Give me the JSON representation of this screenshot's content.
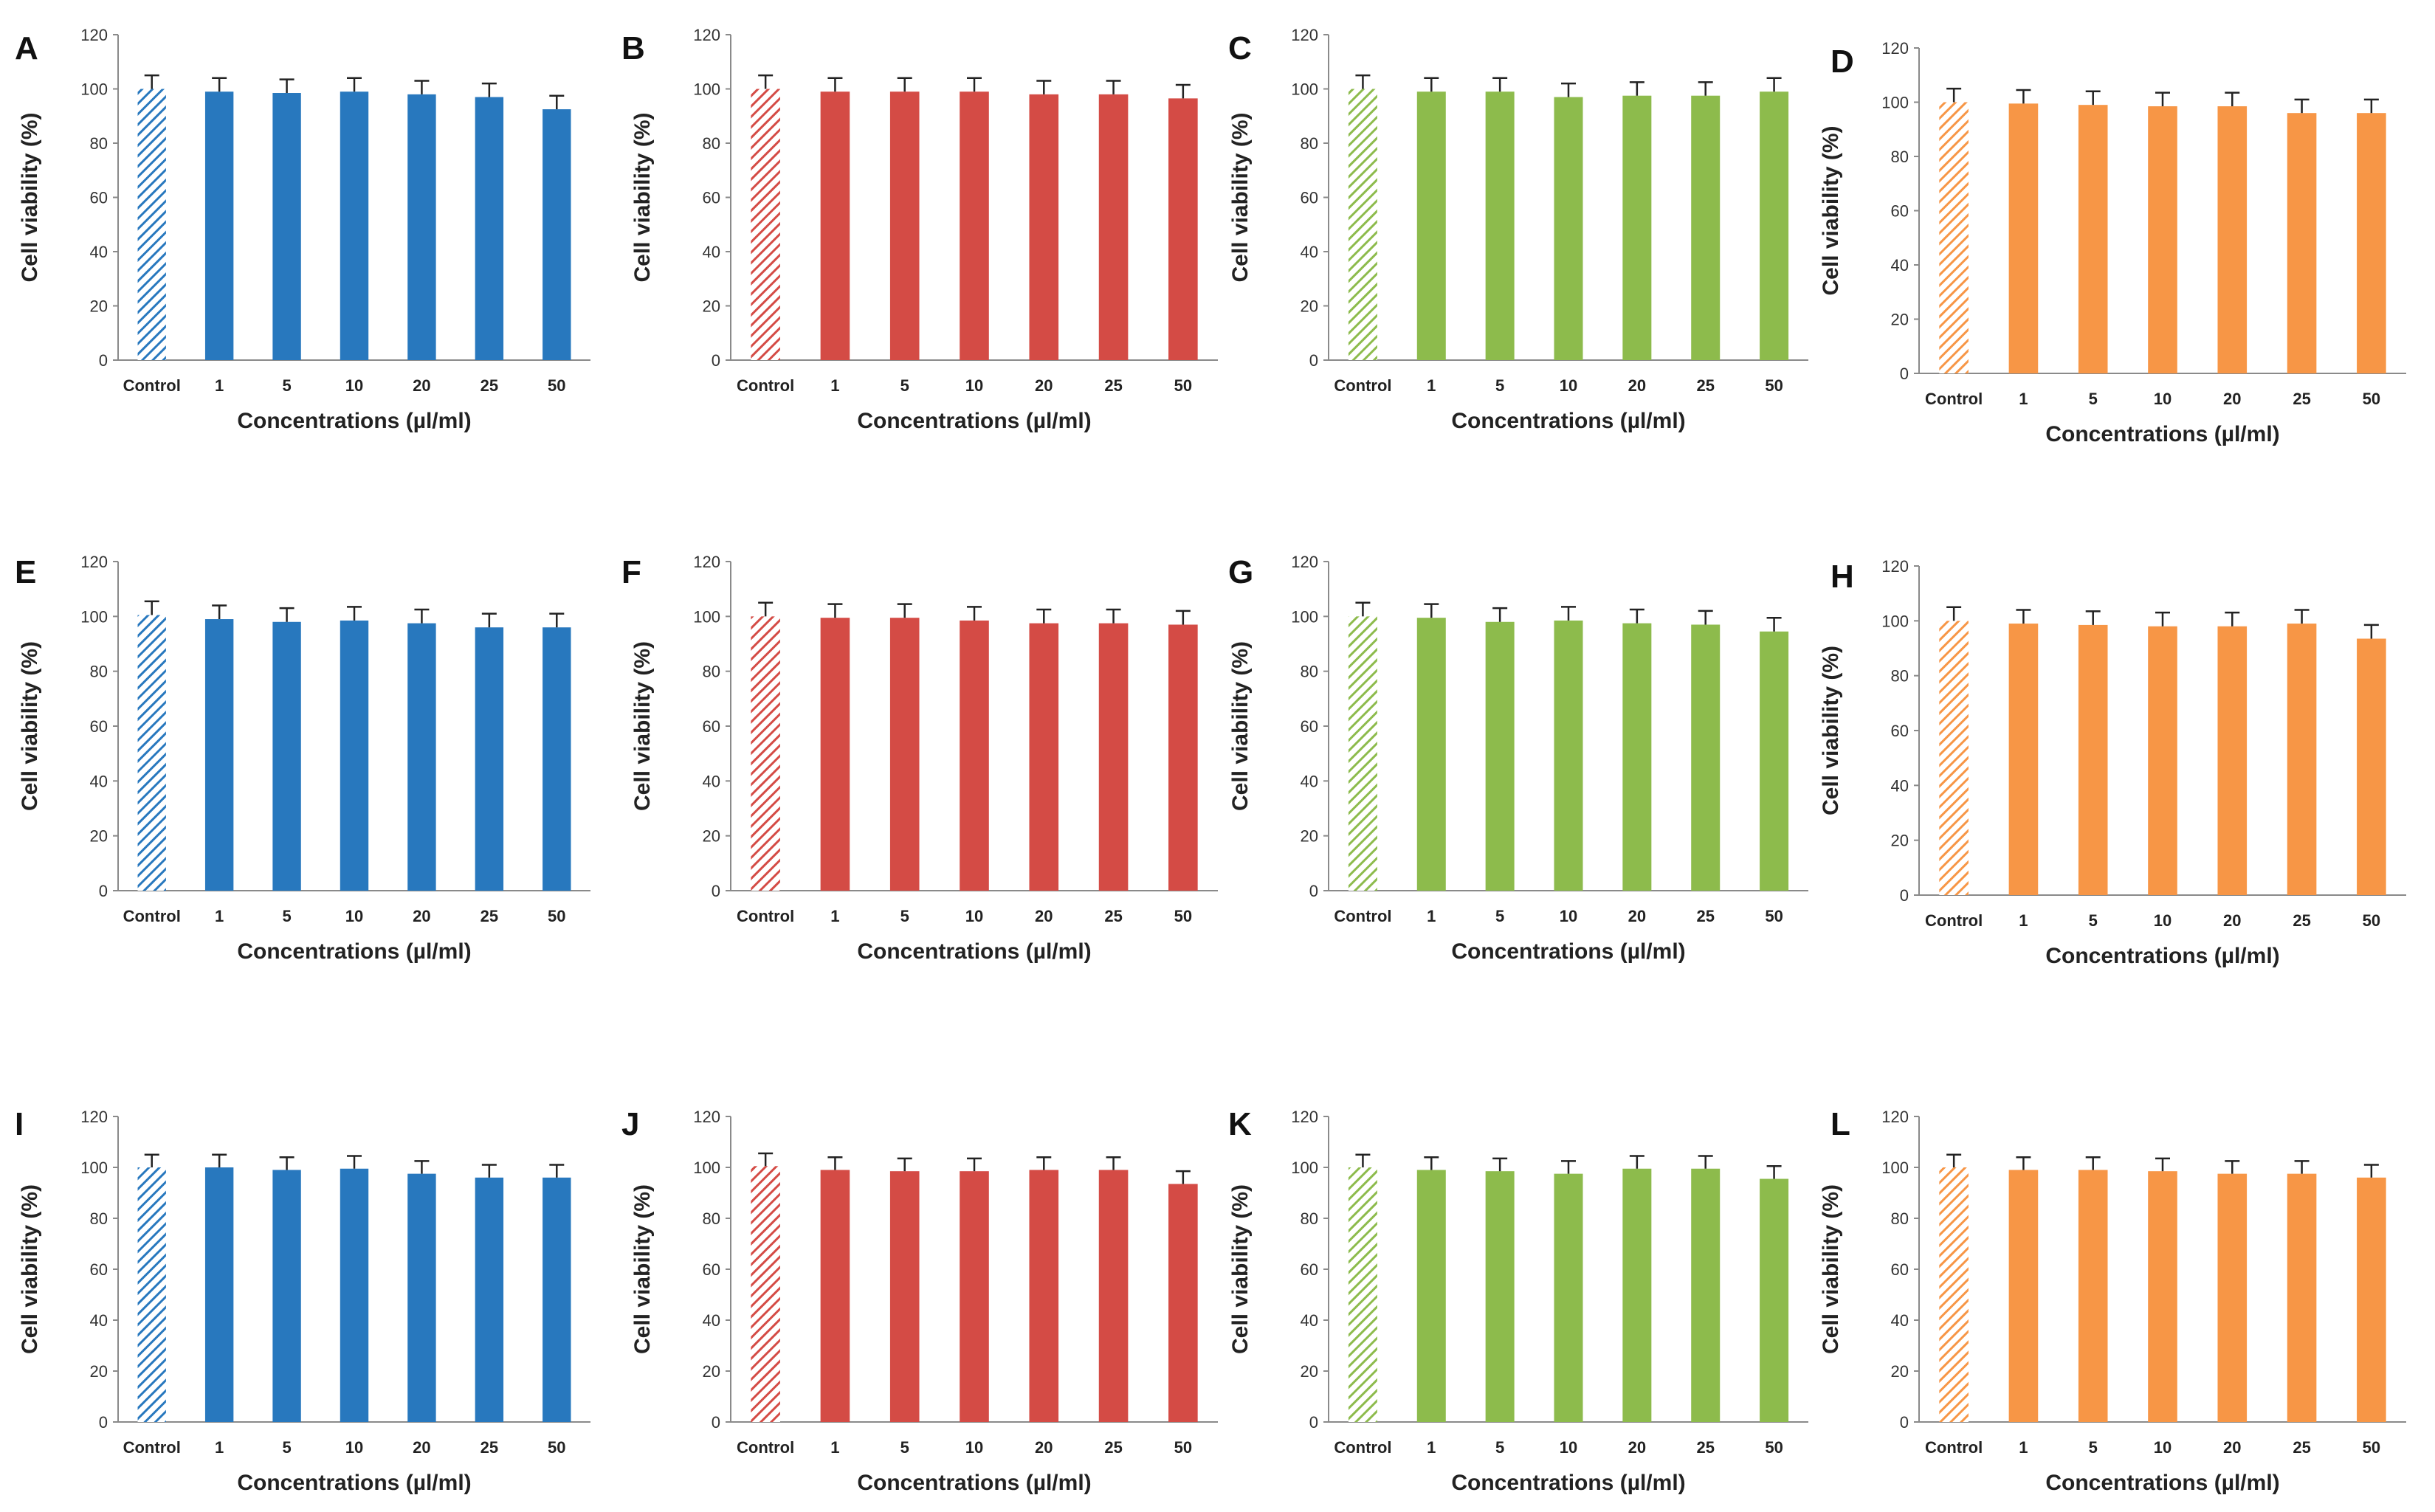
{
  "chart_data": [
    {
      "panel": "A",
      "type": "bar",
      "color": "#2878BE",
      "categories": [
        "Control",
        "1",
        "5",
        "10",
        "20",
        "25",
        "50"
      ],
      "values": [
        100,
        99,
        98.5,
        99,
        98,
        97,
        92.5
      ],
      "errors": [
        5,
        5,
        5,
        5,
        5,
        5,
        5
      ],
      "xlabel": "Concentrations (µl/ml)",
      "ylabel": "Cell viability (%)",
      "yticks": [
        "0",
        "20",
        "40",
        "60",
        "80",
        "100",
        "120"
      ],
      "ylim": [
        0,
        120
      ]
    },
    {
      "panel": "B",
      "type": "bar",
      "color": "#D44B45",
      "categories": [
        "Control",
        "1",
        "5",
        "10",
        "20",
        "25",
        "50"
      ],
      "values": [
        100,
        99,
        99,
        99,
        98,
        98,
        96.5
      ],
      "errors": [
        5,
        5,
        5,
        5,
        5,
        5,
        5
      ],
      "xlabel": "Concentrations (µl/ml)",
      "ylabel": "Cell viability (%)",
      "yticks": [
        "0",
        "20",
        "40",
        "60",
        "80",
        "100",
        "120"
      ],
      "ylim": [
        0,
        120
      ]
    },
    {
      "panel": "C",
      "type": "bar",
      "color": "#8DBB4C",
      "categories": [
        "Control",
        "1",
        "5",
        "10",
        "20",
        "25",
        "50"
      ],
      "values": [
        100,
        99,
        99,
        97,
        97.5,
        97.5,
        99
      ],
      "errors": [
        5,
        5,
        5,
        5,
        5,
        5,
        5
      ],
      "xlabel": "Concentrations (µl/ml)",
      "ylabel": "Cell viability (%)",
      "yticks": [
        "0",
        "20",
        "40",
        "60",
        "80",
        "100",
        "120"
      ],
      "ylim": [
        0,
        120
      ]
    },
    {
      "panel": "D",
      "type": "bar",
      "color": "#F79646",
      "categories": [
        "Control",
        "1",
        "5",
        "10",
        "20",
        "25",
        "50"
      ],
      "values": [
        100,
        99.5,
        99,
        98.5,
        98.5,
        96,
        96
      ],
      "errors": [
        5,
        5,
        5,
        5,
        5,
        5,
        5
      ],
      "xlabel": "Concentrations (µl/ml)",
      "ylabel": "Cell viability (%)",
      "yticks": [
        "0",
        "20",
        "40",
        "60",
        "80",
        "100",
        "120"
      ],
      "ylim": [
        0,
        120
      ]
    },
    {
      "panel": "E",
      "type": "bar",
      "color": "#2878BE",
      "categories": [
        "Control",
        "1",
        "5",
        "10",
        "20",
        "25",
        "50"
      ],
      "values": [
        100.5,
        99,
        98,
        98.5,
        97.5,
        96,
        96
      ],
      "errors": [
        5,
        5,
        5,
        5,
        5,
        5,
        5
      ],
      "xlabel": "Concentrations (µl/ml)",
      "ylabel": "Cell viability (%)",
      "yticks": [
        "0",
        "20",
        "40",
        "60",
        "80",
        "100",
        "120"
      ],
      "ylim": [
        0,
        120
      ]
    },
    {
      "panel": "F",
      "type": "bar",
      "color": "#D44B45",
      "categories": [
        "Control",
        "1",
        "5",
        "10",
        "20",
        "25",
        "50"
      ],
      "values": [
        100,
        99.5,
        99.5,
        98.5,
        97.5,
        97.5,
        97
      ],
      "errors": [
        5,
        5,
        5,
        5,
        5,
        5,
        5
      ],
      "xlabel": "Concentrations (µl/ml)",
      "ylabel": "Cell viability (%)",
      "yticks": [
        "0",
        "20",
        "40",
        "60",
        "80",
        "100",
        "120"
      ],
      "ylim": [
        0,
        120
      ]
    },
    {
      "panel": "G",
      "type": "bar",
      "color": "#8DBB4C",
      "categories": [
        "Control",
        "1",
        "5",
        "10",
        "20",
        "25",
        "50"
      ],
      "values": [
        100,
        99.5,
        98,
        98.5,
        97.5,
        97,
        94.5
      ],
      "errors": [
        5,
        5,
        5,
        5,
        5,
        5,
        5
      ],
      "xlabel": "Concentrations (µl/ml)",
      "ylabel": "Cell viability (%)",
      "yticks": [
        "0",
        "20",
        "40",
        "60",
        "80",
        "100",
        "120"
      ],
      "ylim": [
        0,
        120
      ]
    },
    {
      "panel": "H",
      "type": "bar",
      "color": "#F79646",
      "categories": [
        "Control",
        "1",
        "5",
        "10",
        "20",
        "25",
        "50"
      ],
      "values": [
        100,
        99,
        98.5,
        98,
        98,
        99,
        93.5
      ],
      "errors": [
        5,
        5,
        5,
        5,
        5,
        5,
        5
      ],
      "xlabel": "Concentrations (µl/ml)",
      "ylabel": "Cell viability (%)",
      "yticks": [
        "0",
        "20",
        "40",
        "60",
        "80",
        "100",
        "120"
      ],
      "ylim": [
        0,
        120
      ]
    },
    {
      "panel": "I",
      "type": "bar",
      "color": "#2878BE",
      "categories": [
        "Control",
        "1",
        "5",
        "10",
        "20",
        "25",
        "50"
      ],
      "values": [
        100,
        100,
        99,
        99.5,
        97.5,
        96,
        96
      ],
      "errors": [
        5,
        5,
        5,
        5,
        5,
        5,
        5
      ],
      "xlabel": "Concentrations (µl/ml)",
      "ylabel": "Cell viability (%)",
      "yticks": [
        "0",
        "20",
        "40",
        "60",
        "80",
        "100",
        "120"
      ],
      "ylim": [
        0,
        120
      ]
    },
    {
      "panel": "J",
      "type": "bar",
      "color": "#D44B45",
      "categories": [
        "Control",
        "1",
        "5",
        "10",
        "20",
        "25",
        "50"
      ],
      "values": [
        100.5,
        99,
        98.5,
        98.5,
        99,
        99,
        93.5
      ],
      "errors": [
        5,
        5,
        5,
        5,
        5,
        5,
        5
      ],
      "xlabel": "Concentrations (µl/ml)",
      "ylabel": "Cell viability (%)",
      "yticks": [
        "0",
        "20",
        "40",
        "60",
        "80",
        "100",
        "120"
      ],
      "ylim": [
        0,
        120
      ]
    },
    {
      "panel": "K",
      "type": "bar",
      "color": "#8DBB4C",
      "categories": [
        "Control",
        "1",
        "5",
        "10",
        "20",
        "25",
        "50"
      ],
      "values": [
        100,
        99,
        98.5,
        97.5,
        99.5,
        99.5,
        95.5
      ],
      "errors": [
        5,
        5,
        5,
        5,
        5,
        5,
        5
      ],
      "xlabel": "Concentrations (µl/ml)",
      "ylabel": "Cell viability (%)",
      "yticks": [
        "0",
        "20",
        "40",
        "60",
        "80",
        "100",
        "120"
      ],
      "ylim": [
        0,
        120
      ]
    },
    {
      "panel": "L",
      "type": "bar",
      "color": "#F79646",
      "categories": [
        "Control",
        "1",
        "5",
        "10",
        "20",
        "25",
        "50"
      ],
      "values": [
        100,
        99,
        99,
        98.5,
        97.5,
        97.5,
        96
      ],
      "errors": [
        5,
        5,
        5,
        5,
        5,
        5,
        5
      ],
      "xlabel": "Concentrations (µl/ml)",
      "ylabel": "Cell viability (%)",
      "yticks": [
        "0",
        "20",
        "40",
        "60",
        "80",
        "100",
        "120"
      ],
      "ylim": [
        0,
        120
      ]
    }
  ]
}
